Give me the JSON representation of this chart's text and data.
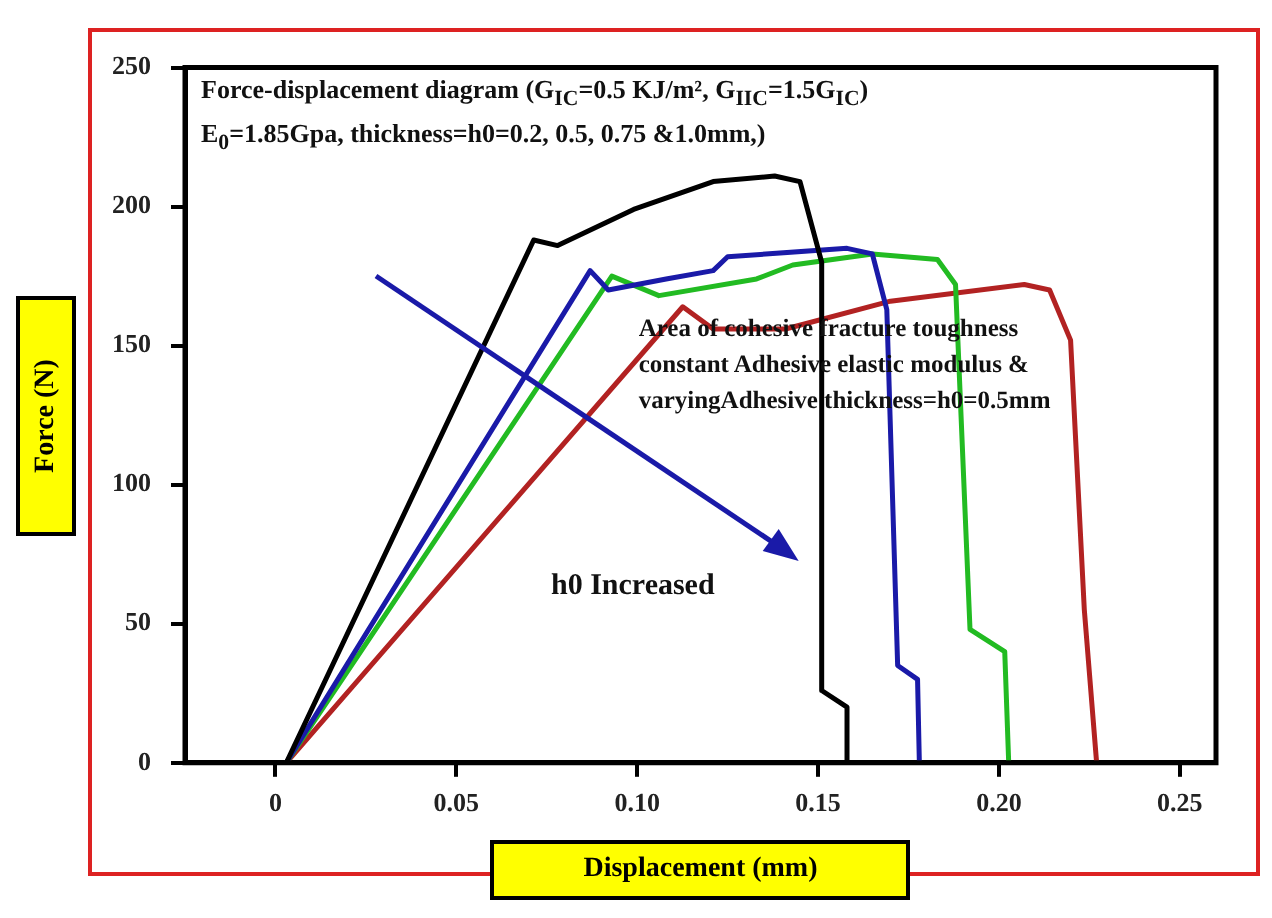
{
  "chart_data": {
    "type": "line",
    "title": "Force-displacement diagram (G$_{IC}$=0.5 KJ/m², G$_{IIC}$=1.5G$_{IC}$)",
    "subtitle": "E$_{0}$=1.85Gpa, thickness=h0=0.2, 0.5, 0.75 &1.0mm,)",
    "xlabel": "Displacement (mm)",
    "ylabel": "Force (N)",
    "annotations": [
      "Area of cohesive fracture toughness constant Adhesive elastic modulus & varyingAdhesive thickness=h0=0.5mm",
      "h0 Increased"
    ],
    "xlim": [
      -0.025,
      0.26
    ],
    "xticks": [
      0,
      0.05,
      {
        "value": 0.1,
        "label": "0.10"
      },
      0.15,
      {
        "value": 0.2,
        "label": "0.20"
      },
      0.25
    ],
    "ylim": [
      0,
      250
    ],
    "yticks": [
      0,
      50,
      100,
      150,
      200,
      250
    ],
    "grid": false,
    "legend": false,
    "marker": "none",
    "line_style": "solid",
    "series": [
      {
        "color": "#000000",
        "x": [
          0.003,
          0.0714,
          0.078,
          0.099,
          0.121,
          0.138,
          0.145,
          0.151,
          0.151,
          0.158,
          0.158
        ],
        "values": [
          0,
          188,
          186,
          199,
          209,
          211,
          209,
          180,
          26,
          20,
          0
        ]
      },
      {
        "color": "#1a1aa8",
        "x": [
          0.003,
          0.087,
          0.092,
          0.108,
          0.121,
          0.125,
          0.158,
          0.165,
          0.169,
          0.172,
          0.1775,
          0.178
        ],
        "values": [
          0,
          177,
          170,
          174,
          177,
          182,
          185,
          183,
          163,
          35,
          30,
          0
        ]
      },
      {
        "color": "#22bb22",
        "x": [
          0.003,
          0.093,
          0.106,
          0.133,
          0.143,
          0.165,
          0.183,
          0.188,
          0.192,
          0.2016,
          0.2027
        ],
        "values": [
          0,
          175,
          168,
          174,
          179,
          183,
          181,
          172,
          48,
          40,
          0
        ]
      },
      {
        "color": "#b22222",
        "x": [
          0.003,
          0.1126,
          0.121,
          0.141,
          0.17,
          0.207,
          0.214,
          0.2198,
          0.2236,
          0.227
        ],
        "values": [
          0,
          164,
          156,
          156,
          166,
          172,
          170,
          152,
          55,
          0
        ]
      }
    ]
  }
}
